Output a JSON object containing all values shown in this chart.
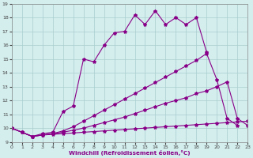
{
  "xlabel": "Windchill (Refroidissement éolien,°C)",
  "xlim": [
    0,
    23
  ],
  "ylim": [
    9,
    19
  ],
  "xticks": [
    0,
    1,
    2,
    3,
    4,
    5,
    6,
    7,
    8,
    9,
    10,
    11,
    12,
    13,
    14,
    15,
    16,
    17,
    18,
    19,
    20,
    21,
    22,
    23
  ],
  "yticks": [
    9,
    10,
    11,
    12,
    13,
    14,
    15,
    16,
    17,
    18,
    19
  ],
  "bg_color": "#d4eded",
  "line_color": "#880088",
  "grid_color": "#aacece",
  "lines": [
    {
      "x": [
        0,
        1,
        2,
        3,
        4,
        5,
        6,
        7,
        8,
        9,
        10,
        11,
        12,
        13,
        14,
        15,
        16,
        17,
        18,
        19
      ],
      "y": [
        10.0,
        9.7,
        9.4,
        9.6,
        9.7,
        11.2,
        11.6,
        15.0,
        14.8,
        16.0,
        16.9,
        17.0,
        18.2,
        17.5,
        18.5,
        17.5,
        18.0,
        17.5,
        18.0,
        15.5
      ]
    },
    {
      "x": [
        0,
        1,
        2,
        3,
        4,
        5,
        6,
        7,
        8,
        9,
        10,
        11,
        12,
        13,
        14,
        15,
        16,
        17,
        18,
        19,
        20,
        21,
        22
      ],
      "y": [
        10.0,
        9.7,
        9.4,
        9.5,
        9.6,
        9.8,
        10.1,
        10.5,
        10.9,
        11.3,
        11.7,
        12.1,
        12.5,
        12.9,
        13.3,
        13.7,
        14.1,
        14.5,
        14.9,
        15.4,
        13.5,
        10.7,
        10.2
      ]
    },
    {
      "x": [
        0,
        1,
        2,
        3,
        4,
        5,
        6,
        7,
        8,
        9,
        10,
        11,
        12,
        13,
        14,
        15,
        16,
        17,
        18,
        19,
        20,
        21,
        22,
        23
      ],
      "y": [
        10.0,
        9.7,
        9.4,
        9.5,
        9.6,
        9.7,
        9.85,
        10.0,
        10.2,
        10.4,
        10.6,
        10.8,
        11.05,
        11.3,
        11.55,
        11.8,
        12.0,
        12.2,
        12.5,
        12.7,
        13.0,
        13.35,
        10.7,
        10.2
      ]
    },
    {
      "x": [
        0,
        1,
        2,
        3,
        4,
        5,
        6,
        7,
        8,
        9,
        10,
        11,
        12,
        13,
        14,
        15,
        16,
        17,
        18,
        19,
        20,
        21,
        22,
        23
      ],
      "y": [
        10.0,
        9.7,
        9.4,
        9.5,
        9.55,
        9.6,
        9.65,
        9.7,
        9.75,
        9.8,
        9.85,
        9.9,
        9.95,
        10.0,
        10.05,
        10.1,
        10.15,
        10.2,
        10.25,
        10.3,
        10.35,
        10.4,
        10.45,
        10.5
      ]
    }
  ]
}
